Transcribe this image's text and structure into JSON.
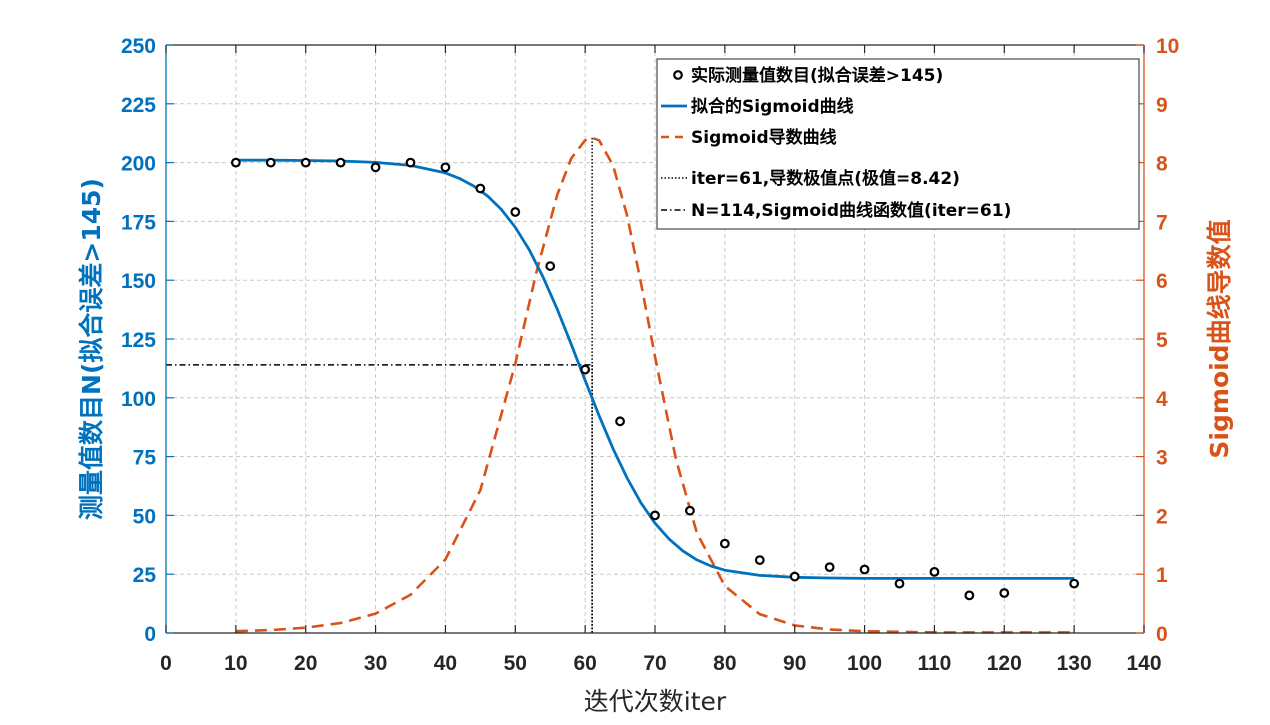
{
  "chart_data": {
    "type": "line",
    "x_label": "迭代次数iter",
    "y_left_label": "测量值数目N(拟合误差>145)",
    "y_right_label": "Sigmoid曲线导数值",
    "xlim": [
      0,
      140
    ],
    "ylim_left": [
      0,
      250
    ],
    "ylim_right": [
      0,
      10
    ],
    "x_ticks": [
      0,
      10,
      20,
      30,
      40,
      50,
      60,
      70,
      80,
      90,
      100,
      110,
      120,
      130,
      140
    ],
    "y_left_ticks": [
      0,
      25,
      50,
      75,
      100,
      125,
      150,
      175,
      200,
      225,
      250
    ],
    "y_right_ticks": [
      0,
      1,
      2,
      3,
      4,
      5,
      6,
      7,
      8,
      9,
      10
    ],
    "grid": true,
    "legend_position": "top-right",
    "measured": {
      "name": "实际测量值数目(拟合误差>145)",
      "x": [
        10,
        15,
        20,
        25,
        30,
        35,
        40,
        45,
        50,
        55,
        60,
        65,
        70,
        75,
        80,
        85,
        90,
        95,
        100,
        105,
        110,
        115,
        120,
        130
      ],
      "y": [
        200,
        200,
        200,
        200,
        198,
        200,
        198,
        189,
        179,
        156,
        112,
        90,
        50,
        52,
        38,
        31,
        24,
        28,
        27,
        21,
        26,
        16,
        17,
        21
      ]
    },
    "sigmoid_fit": {
      "name": "拟合的Sigmoid曲线",
      "x": [
        10,
        15,
        20,
        25,
        30,
        35,
        40,
        42,
        44,
        46,
        48,
        50,
        52,
        54,
        56,
        58,
        60,
        61,
        62,
        64,
        66,
        68,
        70,
        72,
        74,
        76,
        78,
        80,
        85,
        90,
        95,
        100,
        110,
        120,
        130
      ],
      "y": [
        201,
        201,
        200.9,
        200.7,
        200.1,
        198.8,
        195.6,
        193.3,
        190.1,
        185.9,
        180.1,
        172.5,
        162.9,
        151.2,
        137.7,
        122.8,
        107.5,
        114,
        92.4,
        78.3,
        65.9,
        55.3,
        46.7,
        40,
        34.9,
        31.1,
        28.5,
        26.7,
        24.5,
        23.7,
        23.4,
        23.2,
        23.2,
        23.2,
        23.2
      ]
    },
    "sigmoid_derivative": {
      "name": "Sigmoid导数曲线",
      "x": [
        10,
        15,
        20,
        25,
        30,
        35,
        40,
        45,
        50,
        53,
        56,
        58,
        60,
        61,
        62,
        64,
        66,
        68,
        70,
        73,
        76,
        80,
        85,
        90,
        95,
        100,
        105,
        110,
        120,
        130
      ],
      "y": [
        0.03,
        0.05,
        0.09,
        0.17,
        0.33,
        0.65,
        1.25,
        2.43,
        4.58,
        6.12,
        7.45,
        8.07,
        8.38,
        8.42,
        8.38,
        7.95,
        7.1,
        5.95,
        4.7,
        2.95,
        1.7,
        0.8,
        0.32,
        0.13,
        0.06,
        0.03,
        0.02,
        0.01,
        0.01,
        0.01
      ]
    },
    "peak_marker": {
      "name": "iter=61,导数极值点(极值=8.42)",
      "x": 61,
      "y": 8.42
    },
    "value_marker": {
      "name": "N=114,Sigmoid曲线函数值(iter=61)",
      "x": 61,
      "y": 114
    }
  },
  "colors": {
    "blue": "#0072bd",
    "orange": "#d95319",
    "black": "#000000",
    "grid": "#c8c8c8",
    "axis": "#262626"
  }
}
